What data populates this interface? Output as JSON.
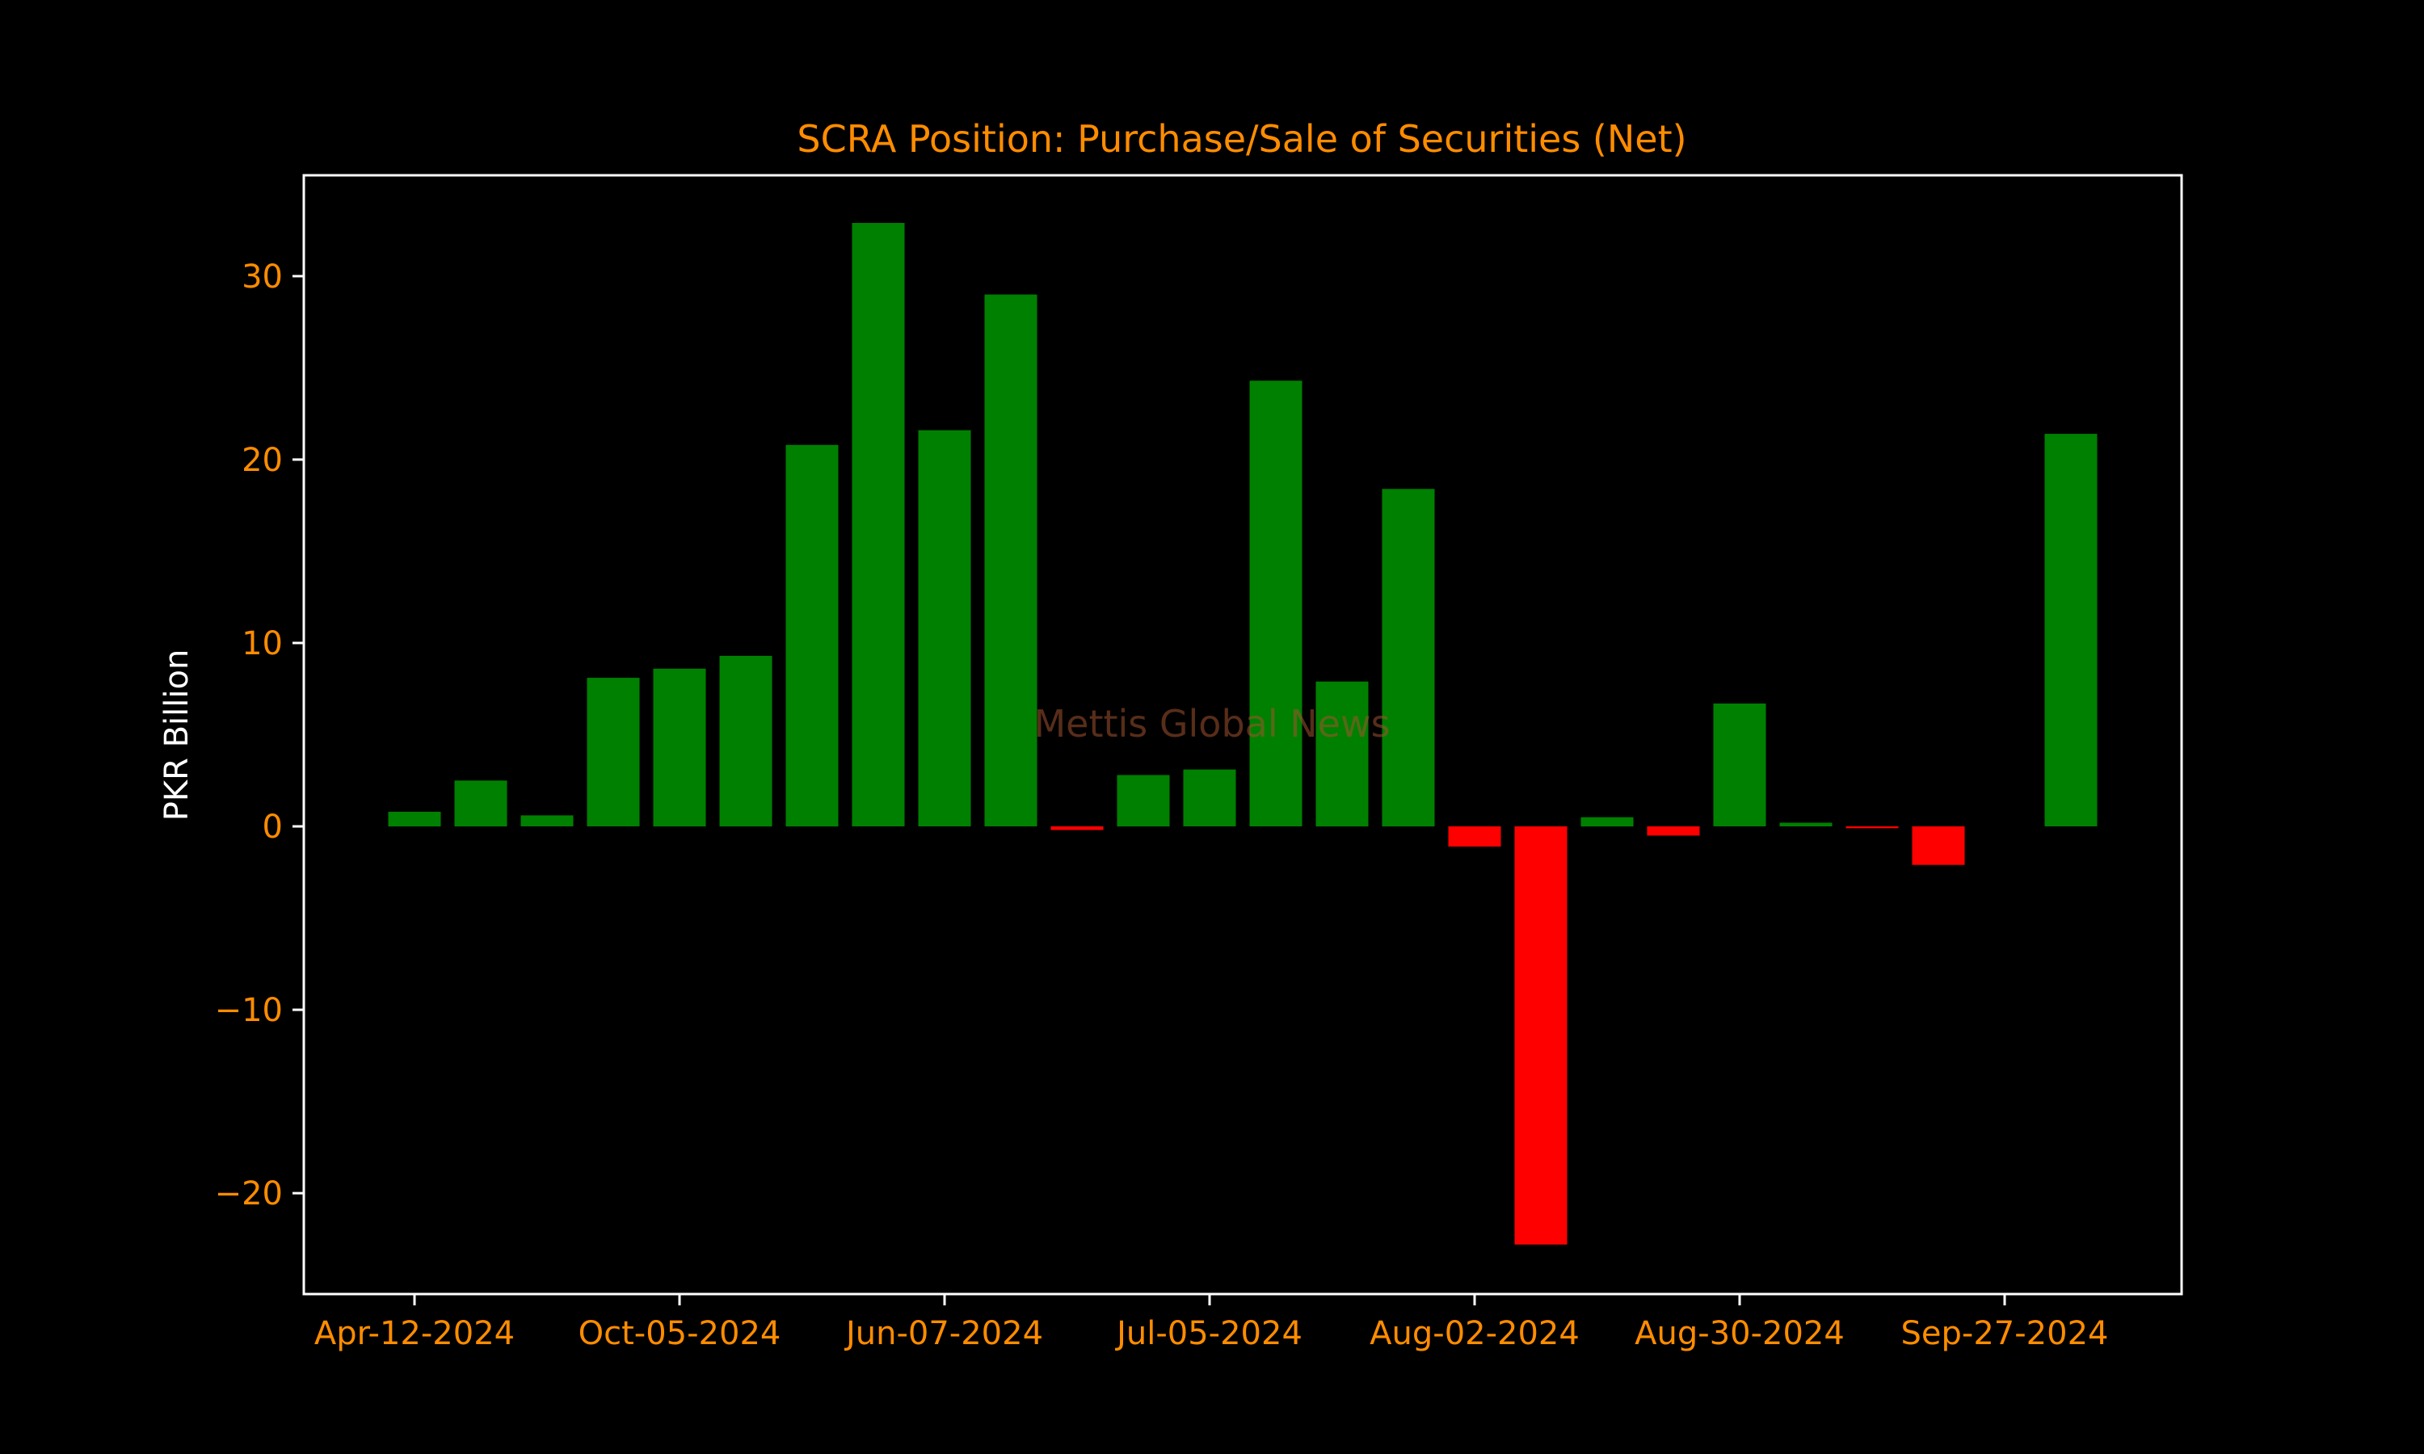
{
  "chart_data": {
    "type": "bar",
    "title": "SCRA Position: Purchase/Sale of Securities (Net)",
    "xlabel": "",
    "ylabel": "PKR Billion",
    "watermark": "Mettis Global News",
    "ylim": [
      -25.5,
      35.5
    ],
    "yticks": [
      -20,
      -10,
      0,
      10,
      20,
      30
    ],
    "ytick_labels": [
      "−20",
      "−10",
      "0",
      "10",
      "20",
      "30"
    ],
    "xtick_labels": [
      "Apr-12-2024",
      "Oct-05-2024",
      "Jun-07-2024",
      "Jul-05-2024",
      "Aug-02-2024",
      "Aug-30-2024",
      "Sep-27-2024"
    ],
    "xtick_positions": [
      0,
      4,
      8,
      12,
      16,
      20,
      24
    ],
    "values": [
      0.8,
      2.5,
      0.6,
      8.1,
      8.6,
      9.3,
      20.8,
      32.9,
      21.6,
      29.0,
      -0.2,
      2.8,
      3.1,
      24.3,
      7.9,
      18.4,
      -1.1,
      -22.8,
      0.5,
      -0.5,
      6.7,
      0.2,
      -0.1,
      -2.1,
      0.0,
      21.4
    ],
    "legend": "none",
    "grid": false,
    "colors": {
      "positive": "#008000",
      "negative": "#ff0000",
      "title": "#ff8c00",
      "ticks": "#ff8c00",
      "axis_label": "#ffffff",
      "frame": "#ffffff",
      "background": "#000000",
      "watermark": "#a0522d"
    }
  }
}
